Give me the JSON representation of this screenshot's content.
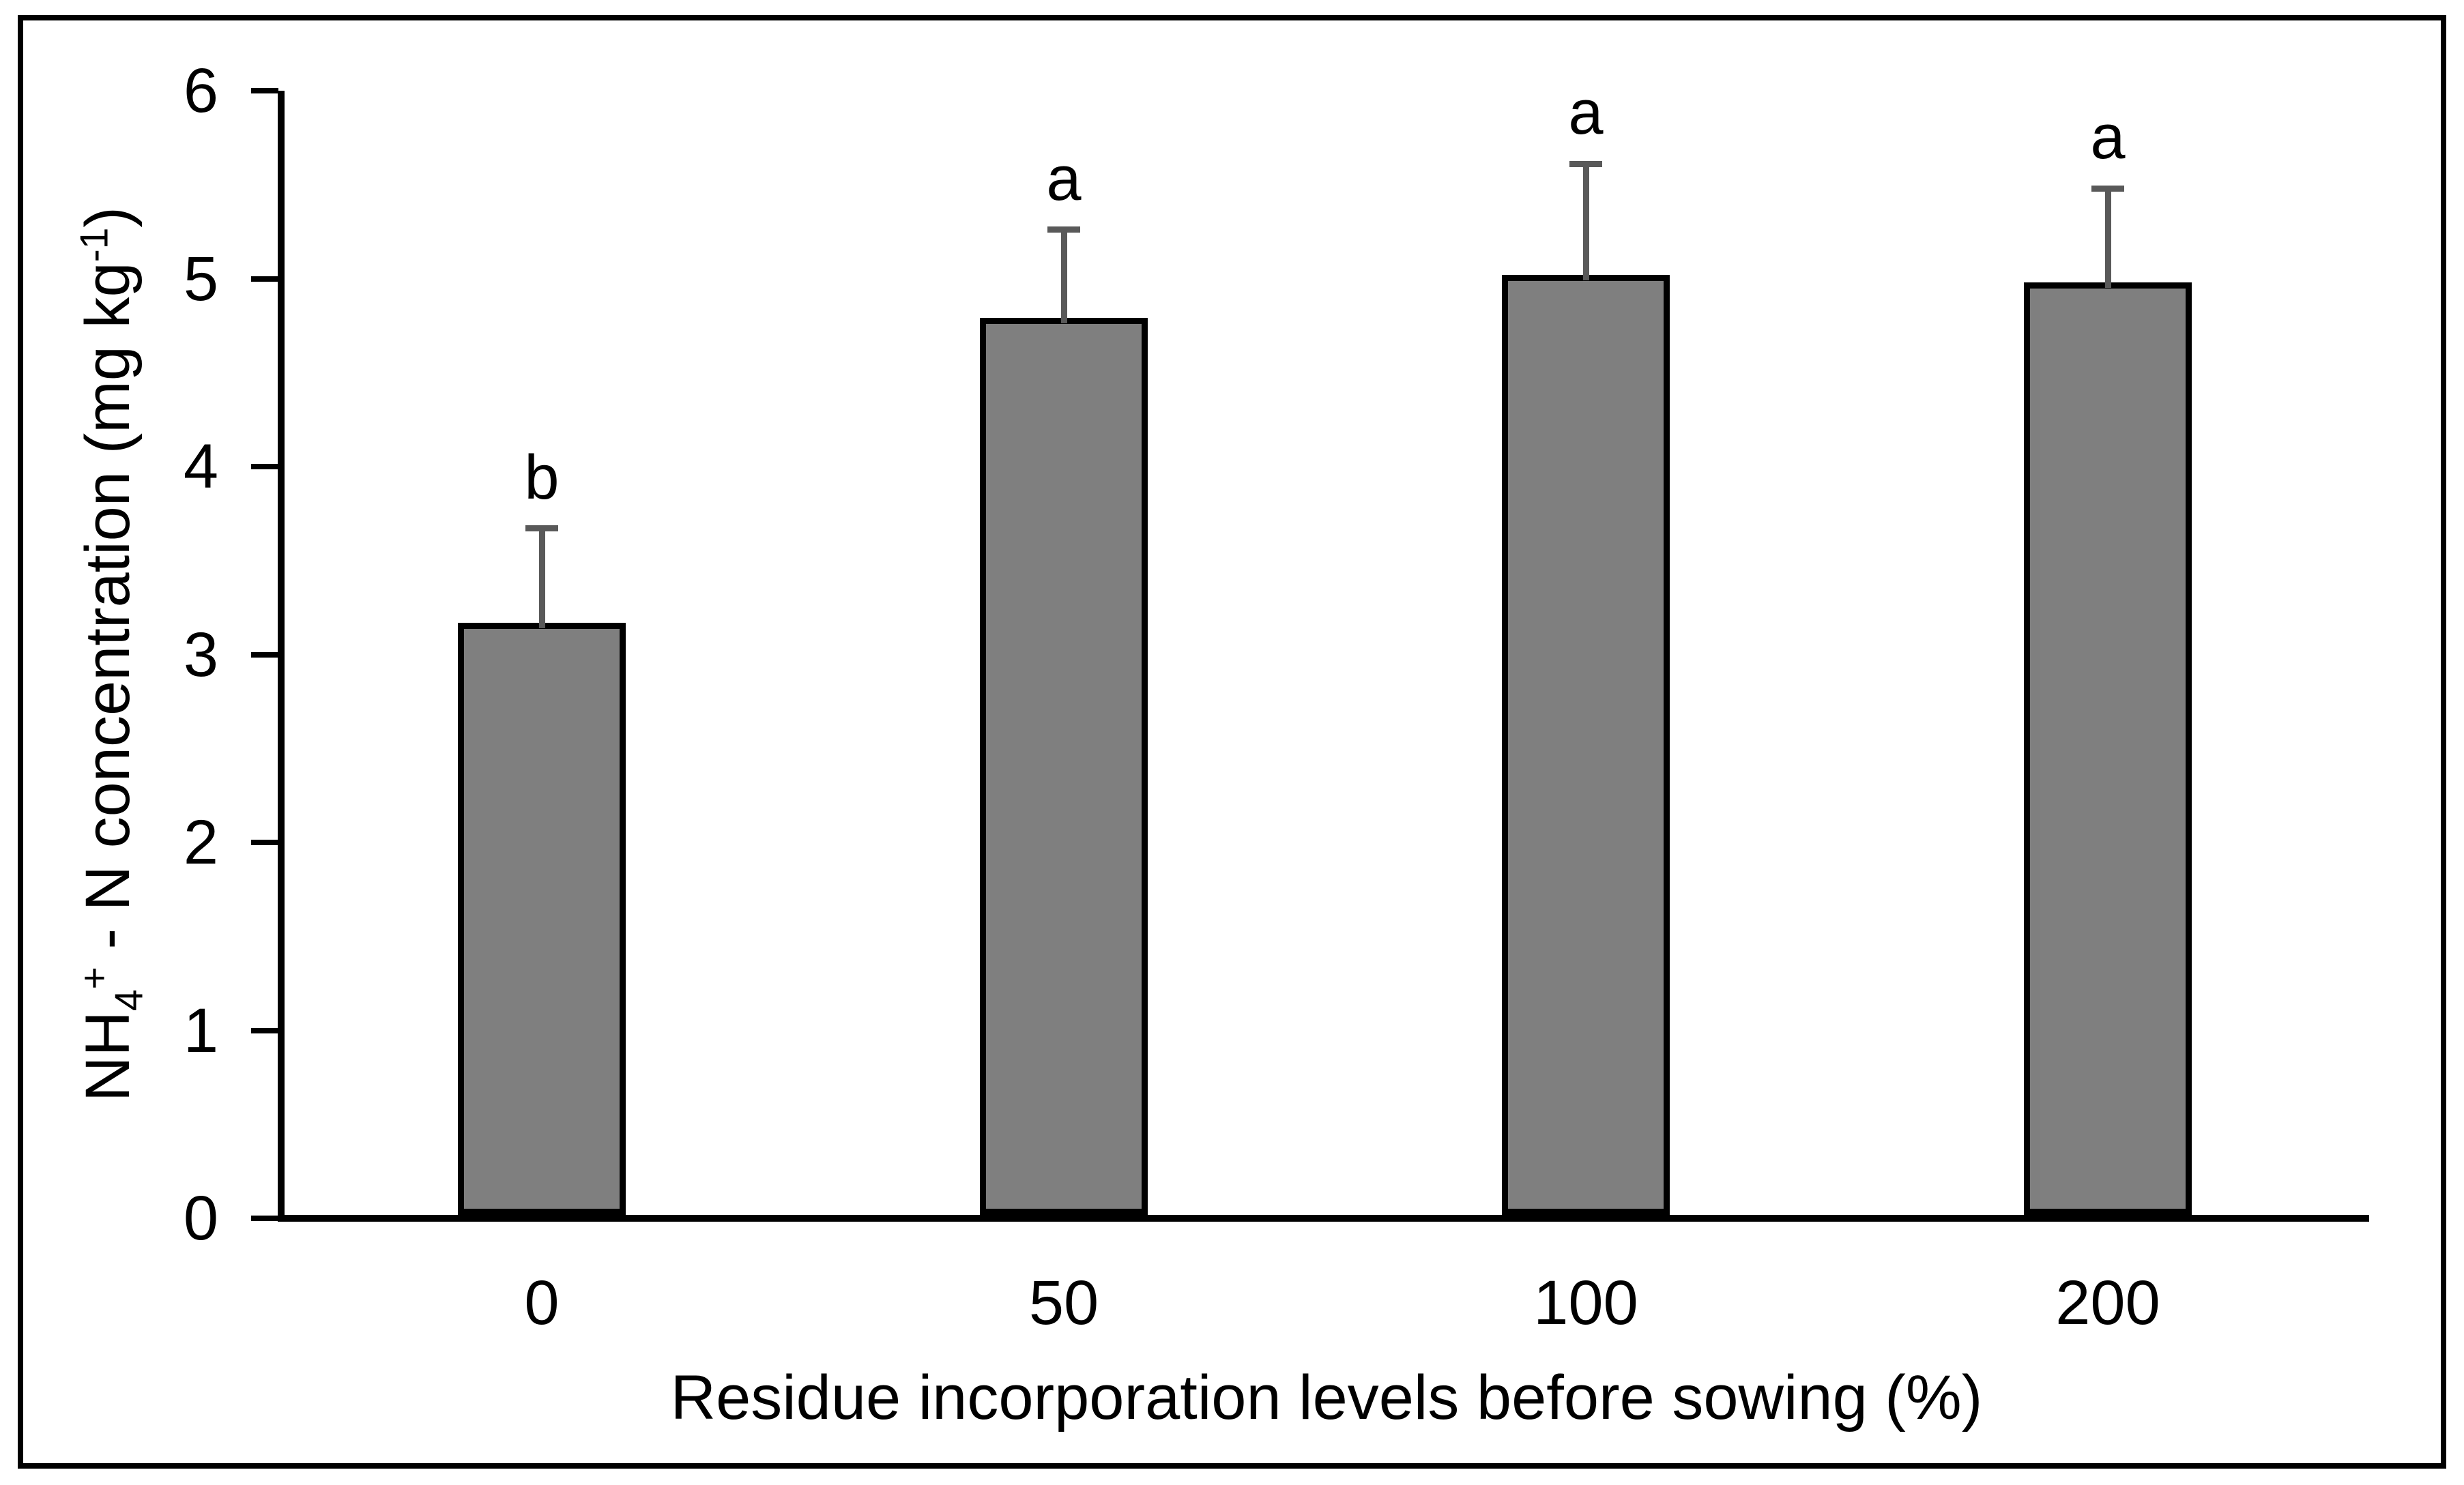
{
  "figure": {
    "background": "#FFFFFF",
    "border_color": "#000000"
  },
  "chart_data": {
    "type": "bar",
    "title": "",
    "xlabel": "Residue incorporation levels before sowing (%)",
    "ylabel_text": "NH4+ - N concentration  (mg kg-1)",
    "ylabel_parts": {
      "base1": "NH",
      "sub1": "4",
      "sup1": "+",
      "base2": " - N concentration  (mg kg",
      "sup2": "-1",
      "base3": ")"
    },
    "categories": [
      "0",
      "50",
      "100",
      "200"
    ],
    "values": [
      3.17,
      4.79,
      5.02,
      4.98
    ],
    "errors_up": [
      0.5,
      0.47,
      0.59,
      0.5
    ],
    "sig_letters": [
      "b",
      "a",
      "a",
      "a"
    ],
    "ylim": [
      0,
      6
    ],
    "yticks": [
      "0",
      "1",
      "2",
      "3",
      "4",
      "5",
      "6"
    ],
    "grid": false,
    "legend": "none"
  },
  "colors": {
    "bar_fill": "#7F7F7F",
    "bar_border": "#000000",
    "error_bar": "#595959",
    "axis": "#000000",
    "text": "#000000",
    "background": "#FFFFFF"
  }
}
